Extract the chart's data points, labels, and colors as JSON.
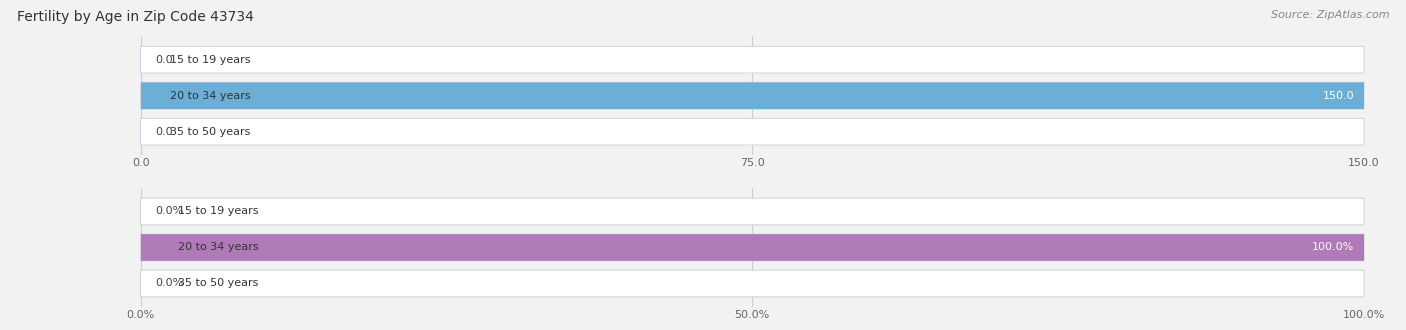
{
  "title": "Fertility by Age in Zip Code 43734",
  "source": "Source: ZipAtlas.com",
  "top_chart": {
    "categories": [
      "15 to 19 years",
      "20 to 34 years",
      "35 to 50 years"
    ],
    "values": [
      0.0,
      150.0,
      0.0
    ],
    "xlim": [
      0,
      150
    ],
    "xticks": [
      0.0,
      75.0,
      150.0
    ],
    "xtick_labels": [
      "0.0",
      "75.0",
      "150.0"
    ],
    "bar_color_full": "#6baed6",
    "bar_color_empty": "#ffffff",
    "bar_border_color": "#d0d8e8"
  },
  "bottom_chart": {
    "categories": [
      "15 to 19 years",
      "20 to 34 years",
      "35 to 50 years"
    ],
    "values": [
      0.0,
      100.0,
      0.0
    ],
    "xlim": [
      0,
      100
    ],
    "xticks": [
      0.0,
      50.0,
      100.0
    ],
    "xtick_labels": [
      "0.0%",
      "50.0%",
      "100.0%"
    ],
    "bar_color_full": "#b07ab8",
    "bar_color_empty": "#ffffff",
    "bar_border_color": "#d8d0e0"
  },
  "bg_color": "#f2f2f2",
  "title_fontsize": 10,
  "label_fontsize": 8,
  "tick_fontsize": 8,
  "source_fontsize": 8
}
